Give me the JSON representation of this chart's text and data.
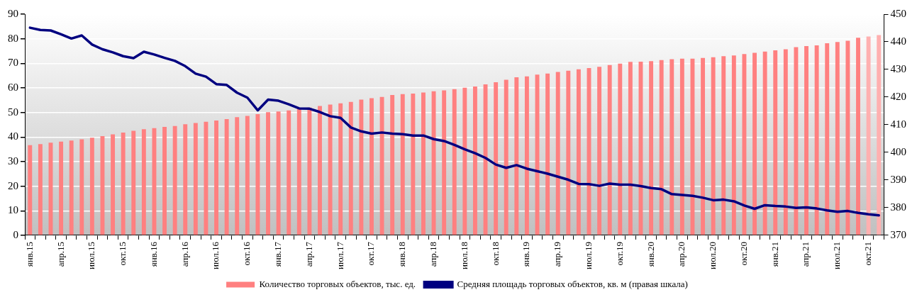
{
  "chart_data": {
    "type": "bar",
    "categories": [
      "янв.15",
      null,
      null,
      "апр.15",
      null,
      null,
      "июл.15",
      null,
      null,
      "окт.15",
      null,
      null,
      "янв.16",
      null,
      null,
      "апр.16",
      null,
      null,
      "июл.16",
      null,
      null,
      "окт.16",
      null,
      null,
      "янв.17",
      null,
      null,
      "апр.17",
      null,
      null,
      "июл.17",
      null,
      null,
      "окт.17",
      null,
      null,
      "янв.18",
      null,
      null,
      "апр.18",
      null,
      null,
      "июл.18",
      null,
      null,
      "окт.18",
      null,
      null,
      "янв.19",
      null,
      null,
      "апр.19",
      null,
      null,
      "июл.19",
      null,
      null,
      "окт.19",
      null,
      null,
      "янв.20",
      null,
      null,
      "апр.20",
      null,
      null,
      "июл.20",
      null,
      null,
      "окт.20",
      null,
      null,
      "янв.21",
      null,
      null,
      "апр.21",
      null,
      null,
      "июл.21",
      null,
      null,
      "окт.21",
      null
    ],
    "series": [
      {
        "name": "Количество торговых объектов, тыс. ед.",
        "color": "#ff8080",
        "colors": [
          "#ff8080",
          "#ff8080",
          "#ff8080",
          "#ff8080",
          "#ff8080",
          "#ff8080",
          "#ff8080",
          "#ff8080",
          "#ff8080",
          "#ff8080",
          "#ff8080",
          "#ff8080",
          "#ff8080",
          "#ff8080",
          "#ff8080",
          "#ff8080",
          "#ff8080",
          "#ff8080",
          "#ff8080",
          "#ff8080",
          "#ff8080",
          "#ff8080",
          "#ff8080",
          "#ff8080",
          "#ff8080",
          "#ff8080",
          "#ff8080",
          "#ff8080",
          "#ff8080",
          "#ff8080",
          "#ff8080",
          "#ff8080",
          "#ff8080",
          "#ff8080",
          "#ff8080",
          "#ff8080",
          "#ff8080",
          "#ff8080",
          "#ff8080",
          "#ff8080",
          "#ff8080",
          "#ff8080",
          "#ff8080",
          "#ff8080",
          "#ff8080",
          "#ff8080",
          "#ff8080",
          "#ff8080",
          "#ff8080",
          "#ff8080",
          "#ff8080",
          "#ff8080",
          "#ff8080",
          "#ff8080",
          "#ff8080",
          "#ff8080",
          "#ff8080",
          "#ff8080",
          "#ff8080",
          "#ff8080",
          "#ff8080",
          "#ff8080",
          "#ff8080",
          "#ff8080",
          "#ff8080",
          "#ff8080",
          "#ff8080",
          "#ff8080",
          "#ff8080",
          "#ff8080",
          "#ff8080",
          "#ff8080",
          "#ff8080",
          "#ff8080",
          "#ff8080",
          "#ff8080",
          "#ff8080",
          "#ff8080",
          "#ff8080",
          "#ff8080",
          "#ff8080",
          "#ffb0b0",
          "#ffb0b0"
        ],
        "values": [
          36.7,
          37.1,
          37.7,
          38.1,
          38.6,
          39.1,
          39.7,
          40.4,
          41.1,
          41.8,
          42.5,
          43.2,
          43.6,
          44.1,
          44.5,
          45.2,
          45.7,
          46.2,
          46.7,
          47.3,
          48.1,
          48.6,
          49.3,
          50.1,
          50.4,
          50.8,
          51.5,
          52.0,
          52.6,
          53.2,
          53.7,
          54.3,
          55.2,
          55.8,
          56.3,
          57.1,
          57.5,
          57.7,
          58.1,
          58.6,
          59.0,
          59.5,
          60.1,
          60.6,
          61.4,
          62.3,
          63.3,
          64.3,
          64.7,
          65.4,
          65.8,
          66.5,
          67.0,
          67.6,
          68.1,
          68.6,
          69.3,
          69.9,
          70.6,
          70.7,
          70.9,
          71.3,
          71.7,
          71.9,
          71.9,
          72.2,
          72.5,
          72.9,
          73.2,
          73.8,
          74.3,
          74.8,
          75.3,
          75.7,
          76.6,
          77.0,
          77.3,
          78.2,
          78.7,
          79.2,
          80.4,
          80.9,
          81.5
        ]
      },
      {
        "name": "Средняя площадь торговых объектов, кв. м (правая шкала)",
        "type": "line",
        "axis": "y2",
        "color": "#000080",
        "values": [
          445.1,
          444.3,
          444.1,
          442.7,
          441.2,
          442.3,
          439.0,
          437.3,
          436.2,
          434.8,
          434.1,
          436.4,
          435.4,
          434.2,
          433.1,
          431.2,
          428.5,
          427.4,
          424.7,
          424.4,
          421.6,
          419.8,
          415.2,
          419.1,
          418.7,
          417.4,
          415.9,
          415.8,
          414.6,
          413.1,
          412.5,
          409.0,
          407.6,
          406.8,
          407.2,
          406.8,
          406.6,
          406.1,
          406.1,
          404.8,
          404.1,
          402.7,
          401.1,
          399.7,
          398.0,
          395.6,
          394.4,
          395.4,
          394.1,
          393.2,
          392.3,
          391.2,
          390.1,
          388.6,
          388.5,
          387.9,
          388.7,
          388.3,
          388.3,
          387.8,
          387.1,
          386.7,
          384.9,
          384.6,
          384.3,
          383.6,
          382.7,
          382.9,
          382.3,
          380.8,
          379.6,
          380.9,
          380.6,
          380.4,
          379.9,
          380.1,
          379.7,
          379.0,
          378.5,
          378.8,
          378.1,
          377.6,
          377.2
        ]
      }
    ],
    "ylim": [
      0,
      90
    ],
    "yticks": [
      0,
      10,
      20,
      30,
      40,
      50,
      60,
      70,
      80,
      90
    ],
    "y2lim": [
      370,
      450
    ],
    "y2ticks": [
      370,
      380,
      390,
      400,
      410,
      420,
      430,
      440,
      450
    ],
    "grid": "y",
    "legend": "bottom",
    "marker": "none"
  }
}
